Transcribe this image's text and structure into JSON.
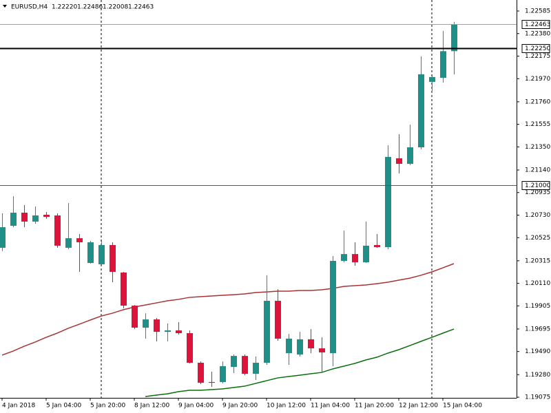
{
  "chart_data": {
    "type": "candlestick",
    "title": "EURUSD,H4",
    "header_values": [
      "1.22220",
      "1.22486",
      "1.22008",
      "1.22463"
    ],
    "categories": [
      "4 Jan 2018",
      null,
      null,
      null,
      "5 Jan 04:00",
      null,
      null,
      null,
      "5 Jan 20:00",
      null,
      null,
      null,
      "8 Jan 12:00",
      null,
      null,
      null,
      "9 Jan 04:00",
      null,
      null,
      null,
      "9 Jan 20:00",
      null,
      null,
      null,
      "10 Jan 12:00",
      null,
      null,
      null,
      "11 Jan 04:00",
      null,
      null,
      null,
      "11 Jan 20:00",
      null,
      null,
      null,
      "12 Jan 12:00",
      null,
      null,
      null,
      "15 Jan 04:00",
      null
    ],
    "open": [
      1.20433,
      1.20633,
      1.20752,
      1.20671,
      1.20733,
      1.20727,
      1.20433,
      1.2052,
      1.20295,
      1.20283,
      1.20458,
      1.20208,
      1.19907,
      1.19707,
      1.19782,
      1.19669,
      1.19682,
      1.19657,
      1.19388,
      1.19213,
      1.19213,
      1.1935,
      1.1945,
      1.19288,
      1.19388,
      1.19951,
      1.19475,
      1.19463,
      1.19601,
      1.19519,
      1.19475,
      1.20314,
      1.20376,
      1.20301,
      1.20458,
      1.20439,
      1.21246,
      1.21196,
      1.21346,
      1.21941,
      1.21978,
      1.2222
    ],
    "high": [
      1.20746,
      1.20902,
      1.20821,
      1.20808,
      1.20758,
      1.20746,
      1.2084,
      1.20558,
      1.20495,
      1.20508,
      1.20483,
      1.20214,
      1.19913,
      1.19838,
      1.19795,
      1.19745,
      1.19757,
      1.19682,
      1.194,
      1.19307,
      1.194,
      1.19463,
      1.19463,
      1.19444,
      1.20183,
      1.20057,
      1.19651,
      1.19669,
      1.19694,
      1.19619,
      1.20358,
      1.20589,
      1.20483,
      1.20671,
      1.20558,
      1.21365,
      1.21465,
      1.21553,
      1.22172,
      1.2201,
      1.22404,
      1.22486
    ],
    "low": [
      1.20402,
      1.2062,
      1.2062,
      1.20652,
      1.20696,
      1.20433,
      1.2042,
      1.20214,
      1.20289,
      1.20276,
      1.2012,
      1.19882,
      1.19694,
      1.19607,
      1.19582,
      1.19582,
      1.19644,
      1.19382,
      1.19194,
      1.19169,
      1.192,
      1.19294,
      1.19275,
      1.19231,
      1.19369,
      1.19588,
      1.19369,
      1.19444,
      1.19475,
      1.19307,
      1.19357,
      1.20301,
      1.2027,
      1.20295,
      1.20433,
      1.2042,
      1.21109,
      1.21184,
      1.21328,
      1.21859,
      1.21934,
      1.22008
    ],
    "close": [
      1.2062,
      1.20752,
      1.20671,
      1.20727,
      1.20714,
      1.20452,
      1.2052,
      1.20483,
      1.20483,
      1.20458,
      1.20214,
      1.19907,
      1.19707,
      1.19782,
      1.19669,
      1.19682,
      1.19657,
      1.19388,
      1.19206,
      1.19206,
      1.19357,
      1.1945,
      1.19288,
      1.19388,
      1.19951,
      1.19607,
      1.19607,
      1.19601,
      1.19519,
      1.19482,
      1.20314,
      1.20376,
      1.20301,
      1.20452,
      1.20439,
      1.21259,
      1.21196,
      1.21346,
      1.2201,
      1.21985,
      1.2222,
      1.22463
    ],
    "up_color": "#1f8f88",
    "down_color": "#dc143c",
    "series": [
      {
        "color": "#a83232",
        "values": [
          1.19457,
          1.19494,
          1.19538,
          1.19576,
          1.19619,
          1.19657,
          1.19701,
          1.19738,
          1.19776,
          1.19813,
          1.19838,
          1.1987,
          1.19895,
          1.19913,
          1.19932,
          1.19951,
          1.19964,
          1.19982,
          1.19989,
          1.19995,
          1.20001,
          1.20007,
          1.20014,
          1.20026,
          1.20032,
          1.20039,
          1.20039,
          1.20045,
          1.20045,
          1.20051,
          1.20064,
          1.20082,
          1.20089,
          1.20095,
          1.20107,
          1.2012,
          1.20139,
          1.20157,
          1.20183,
          1.20214,
          1.20251,
          1.20289
        ]
      },
      {
        "color": "#0a6e0a",
        "values": [
          null,
          null,
          null,
          null,
          null,
          null,
          null,
          null,
          null,
          null,
          null,
          null,
          null,
          1.19081,
          1.19094,
          1.19106,
          1.19125,
          1.19138,
          1.19138,
          1.19144,
          1.1915,
          1.19163,
          1.19175,
          1.192,
          1.19225,
          1.1925,
          1.19263,
          1.19275,
          1.19288,
          1.193,
          1.19332,
          1.19357,
          1.19382,
          1.19413,
          1.19438,
          1.19475,
          1.19507,
          1.19544,
          1.19582,
          1.19619,
          1.19657,
          1.19694
        ]
      }
    ],
    "price_lines": [
      {
        "value": 1.22463,
        "color": "#8fa3b3"
      },
      {
        "value": {
          "value": 1.2225,
          "label": "1.22250"
        },
        "color": "#000000"
      },
      {
        "value": {
          "value": 1.21,
          "label": "1.21000"
        },
        "color": "#555555"
      }
    ],
    "ylim": [
      1.19069,
      1.22685
    ],
    "yticks": [
      1.22585,
      {
        "value": 1.2238,
        "label": "1.22380"
      },
      1.22175,
      {
        "value": 1.2197,
        "label": "1.21970"
      },
      {
        "value": 1.2176,
        "label": "1.21760"
      },
      1.21555,
      {
        "value": 1.2135,
        "label": "1.21350"
      },
      {
        "value": 1.2114,
        "label": "1.21140"
      },
      1.20935,
      {
        "value": 1.2073,
        "label": "1.20730"
      },
      1.20525,
      1.20315,
      {
        "value": 1.2011,
        "label": "1.20110"
      },
      1.19905,
      1.19695,
      {
        "value": 1.1949,
        "label": "1.19490"
      },
      {
        "value": 1.1928,
        "label": "1.19280"
      },
      1.19075
    ]
  }
}
